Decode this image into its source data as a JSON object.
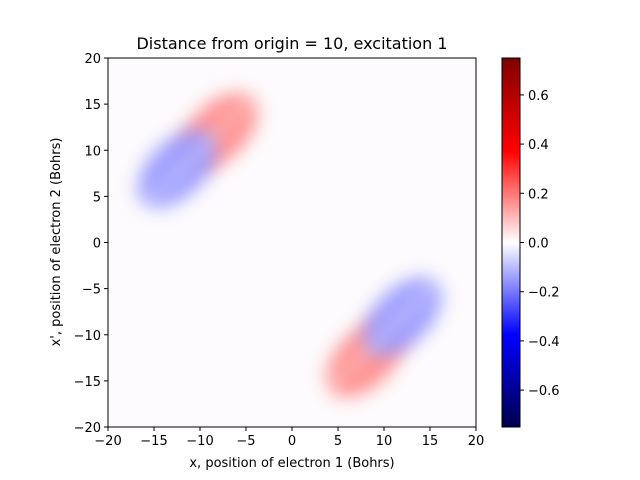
{
  "chart_data": {
    "type": "heatmap",
    "title": "Distance from origin = 10, excitation 1",
    "xlabel": "x, position of electron 1 (Bohrs)",
    "ylabel": "x', position of electron 2 (Bohrs)",
    "xlim": [
      -20,
      20
    ],
    "ylim": [
      -20,
      20
    ],
    "x_ticks": [
      "−20",
      "−15",
      "−10",
      "−5",
      "0",
      "5",
      "10",
      "15",
      "20"
    ],
    "y_ticks": [
      "−20",
      "−15",
      "−10",
      "−5",
      "0",
      "5",
      "10",
      "15",
      "20"
    ],
    "x_tick_values": [
      -20,
      -15,
      -10,
      -5,
      0,
      5,
      10,
      15,
      20
    ],
    "y_tick_values": [
      -20,
      -15,
      -10,
      -5,
      0,
      5,
      10,
      15,
      20
    ],
    "colormap": "seismic",
    "colorbar": {
      "range": [
        -0.75,
        0.75
      ],
      "ticks": [
        "−0.6",
        "−0.4",
        "−0.2",
        "0.0",
        "0.2",
        "0.4",
        "0.6"
      ],
      "tick_values": [
        -0.6,
        -0.4,
        -0.2,
        0.0,
        0.2,
        0.4,
        0.6
      ]
    },
    "features": [
      {
        "sign": "positive",
        "x": -8,
        "y": 12,
        "peak": 0.17
      },
      {
        "sign": "negative",
        "x": -12.5,
        "y": 8,
        "peak": -0.15
      },
      {
        "sign": "positive",
        "x": 8,
        "y": -12.5,
        "peak": 0.17
      },
      {
        "sign": "negative",
        "x": 12,
        "y": -8,
        "peak": -0.15
      }
    ],
    "grid": false
  }
}
